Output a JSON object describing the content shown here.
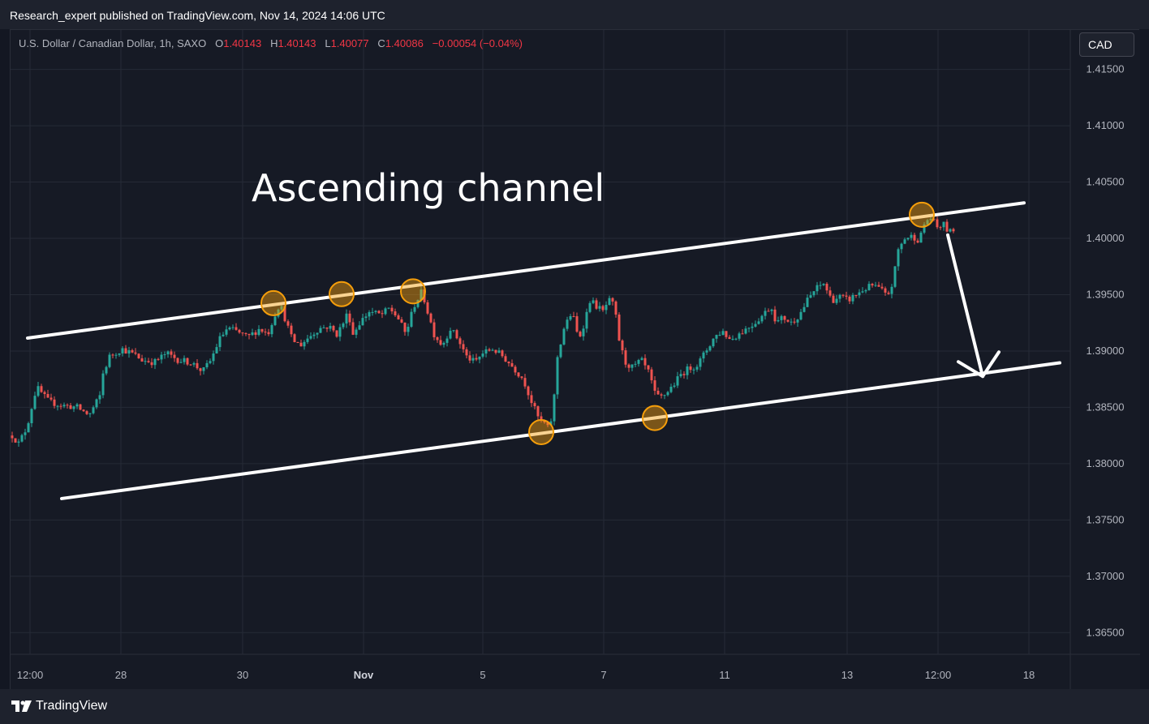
{
  "header": {
    "published": "Research_expert published on TradingView.com, Nov 14, 2024 14:06 UTC"
  },
  "legend": {
    "symbol": "U.S. Dollar / Canadian Dollar, 1h, SAXO",
    "o_label": "O",
    "o_value": "1.40143",
    "h_label": "H",
    "h_value": "1.40143",
    "l_label": "L",
    "l_value": "1.40077",
    "c_label": "C",
    "c_value": "1.40086",
    "change": "−0.00054 (−0.04%)"
  },
  "currency_button": "CAD",
  "footer": {
    "brand": "TradingView"
  },
  "colors": {
    "up": "#26a69a",
    "down": "#ef5350",
    "background": "#161a25",
    "grid": "#252a36",
    "annotation": "#ffffff",
    "marker": "#f59e0b"
  },
  "chart_data": {
    "type": "candlestick",
    "title": "Ascending channel",
    "y_axis_ticks": [
      "1.41500",
      "1.41000",
      "1.40500",
      "1.40000",
      "1.39500",
      "1.39000",
      "1.38500",
      "1.38000",
      "1.37500",
      "1.37000",
      "1.36500"
    ],
    "x_axis_ticks": [
      "12:00",
      "28",
      "30",
      "Nov",
      "5",
      "7",
      "11",
      "13",
      "12:00",
      "18"
    ],
    "ylim": [
      1.3625,
      1.4185
    ],
    "grid": true,
    "close_path": [
      [
        0,
        1.3825
      ],
      [
        8,
        1.3818
      ],
      [
        18,
        1.3832
      ],
      [
        30,
        1.3868
      ],
      [
        45,
        1.3855
      ],
      [
        60,
        1.3852
      ],
      [
        80,
        1.385
      ],
      [
        95,
        1.3843
      ],
      [
        108,
        1.386
      ],
      [
        112,
        1.388
      ],
      [
        120,
        1.3895
      ],
      [
        135,
        1.3902
      ],
      [
        150,
        1.3897
      ],
      [
        160,
        1.3892
      ],
      [
        175,
        1.389
      ],
      [
        190,
        1.3898
      ],
      [
        205,
        1.3892
      ],
      [
        220,
        1.389
      ],
      [
        235,
        1.3882
      ],
      [
        245,
        1.3892
      ],
      [
        255,
        1.391
      ],
      [
        265,
        1.392
      ],
      [
        275,
        1.3918
      ],
      [
        290,
        1.3912
      ],
      [
        305,
        1.392
      ],
      [
        315,
        1.3915
      ],
      [
        325,
        1.3935
      ],
      [
        330,
        1.3942
      ],
      [
        338,
        1.3925
      ],
      [
        345,
        1.391
      ],
      [
        355,
        1.3905
      ],
      [
        365,
        1.3912
      ],
      [
        378,
        1.392
      ],
      [
        390,
        1.3922
      ],
      [
        400,
        1.3915
      ],
      [
        408,
        1.3925
      ],
      [
        414,
        1.3935
      ],
      [
        420,
        1.3915
      ],
      [
        428,
        1.3925
      ],
      [
        440,
        1.3935
      ],
      [
        455,
        1.3932
      ],
      [
        465,
        1.3938
      ],
      [
        475,
        1.393
      ],
      [
        485,
        1.3915
      ],
      [
        495,
        1.394
      ],
      [
        505,
        1.3953
      ],
      [
        512,
        1.3935
      ],
      [
        520,
        1.3915
      ],
      [
        530,
        1.3905
      ],
      [
        540,
        1.392
      ],
      [
        550,
        1.391
      ],
      [
        560,
        1.3895
      ],
      [
        570,
        1.389
      ],
      [
        580,
        1.3898
      ],
      [
        592,
        1.3902
      ],
      [
        605,
        1.3895
      ],
      [
        618,
        1.3885
      ],
      [
        630,
        1.3875
      ],
      [
        640,
        1.3855
      ],
      [
        650,
        1.3838
      ],
      [
        658,
        1.3835
      ],
      [
        662,
        1.3828
      ],
      [
        668,
        1.386
      ],
      [
        672,
        1.3895
      ],
      [
        680,
        1.392
      ],
      [
        690,
        1.3935
      ],
      [
        698,
        1.391
      ],
      [
        705,
        1.3925
      ],
      [
        712,
        1.3945
      ],
      [
        720,
        1.394
      ],
      [
        728,
        1.3935
      ],
      [
        735,
        1.3945
      ],
      [
        742,
        1.394
      ],
      [
        748,
        1.391
      ],
      [
        755,
        1.389
      ],
      [
        765,
        1.3885
      ],
      [
        775,
        1.3892
      ],
      [
        785,
        1.388
      ],
      [
        792,
        1.3862
      ],
      [
        798,
        1.3858
      ],
      [
        805,
        1.3862
      ],
      [
        815,
        1.387
      ],
      [
        825,
        1.388
      ],
      [
        835,
        1.3885
      ],
      [
        845,
        1.3888
      ],
      [
        855,
        1.39
      ],
      [
        865,
        1.3912
      ],
      [
        875,
        1.3918
      ],
      [
        885,
        1.391
      ],
      [
        895,
        1.3915
      ],
      [
        905,
        1.392
      ],
      [
        915,
        1.3925
      ],
      [
        925,
        1.3932
      ],
      [
        935,
        1.394
      ],
      [
        942,
        1.3925
      ],
      [
        950,
        1.393
      ],
      [
        960,
        1.3925
      ],
      [
        970,
        1.3932
      ],
      [
        980,
        1.3945
      ],
      [
        990,
        1.3955
      ],
      [
        1000,
        1.396
      ],
      [
        1010,
        1.3945
      ],
      [
        1020,
        1.3948
      ],
      [
        1030,
        1.3945
      ],
      [
        1040,
        1.395
      ],
      [
        1050,
        1.3955
      ],
      [
        1060,
        1.3958
      ],
      [
        1070,
        1.3955
      ],
      [
        1078,
        1.3948
      ],
      [
        1085,
        1.396
      ],
      [
        1092,
        1.399
      ],
      [
        1100,
        1.4
      ],
      [
        1110,
        1.4002
      ],
      [
        1118,
        1.3998
      ],
      [
        1125,
        1.4015
      ],
      [
        1132,
        1.4018
      ],
      [
        1140,
        1.401
      ],
      [
        1148,
        1.4012
      ],
      [
        1155,
        1.4005
      ],
      [
        1162,
        1.4009
      ]
    ],
    "annotations": {
      "upper_line": {
        "from": [
          19,
          1.39115
        ],
        "to": [
          1247,
          1.40315
        ]
      },
      "lower_line": {
        "from": [
          61,
          1.3769
        ],
        "to": [
          1291,
          1.38895
        ]
      },
      "touch_points": [
        [
          322,
          1.39425
        ],
        [
          406,
          1.39505
        ],
        [
          494,
          1.3953
        ],
        [
          652,
          1.3828
        ],
        [
          792,
          1.38405
        ],
        [
          1121,
          1.4021
        ]
      ],
      "arrow": {
        "from": [
          1153,
          1.4003
        ],
        "to": [
          1196,
          1.38775
        ]
      }
    }
  }
}
